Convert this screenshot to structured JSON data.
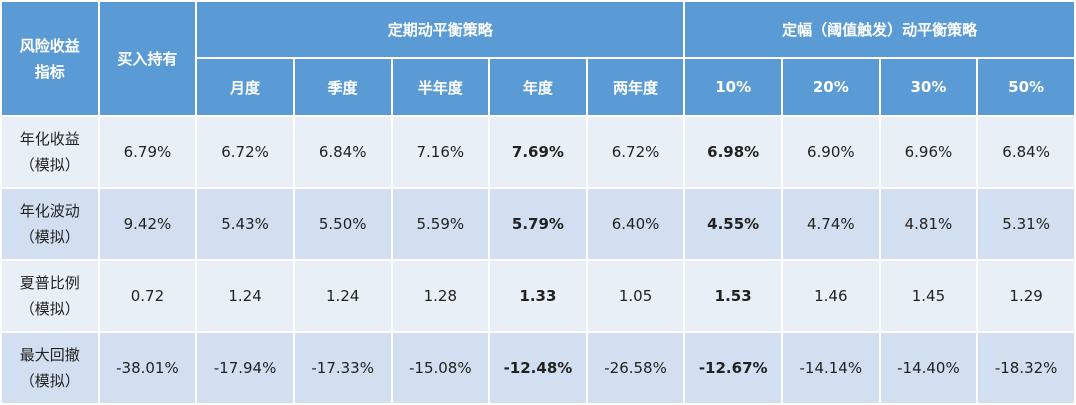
{
  "table": {
    "corner": [
      "风险收益",
      "指标"
    ],
    "buy_hold": "买入持有",
    "groups": [
      {
        "title": "定期动平衡策略",
        "columns": [
          {
            "name": "月度",
            "emphasis": false
          },
          {
            "name": "季度",
            "emphasis": false
          },
          {
            "name": "半年度",
            "emphasis": false
          },
          {
            "name": "年度",
            "emphasis": true
          },
          {
            "name": "两年度",
            "emphasis": false
          }
        ]
      },
      {
        "title": "定幅（阈值触发）动平衡策略",
        "columns": [
          {
            "name": "10%",
            "emphasis": true
          },
          {
            "name": "20%",
            "emphasis": false
          },
          {
            "name": "30%",
            "emphasis": false
          },
          {
            "name": "50%",
            "emphasis": false
          }
        ]
      }
    ],
    "rows": [
      {
        "label": [
          "年化收益",
          "（模拟）"
        ],
        "cells": [
          "6.79%",
          "6.72%",
          "6.84%",
          "7.16%",
          "7.69%",
          "6.72%",
          "6.98%",
          "6.90%",
          "6.96%",
          "6.84%"
        ]
      },
      {
        "label": [
          "年化波动",
          "（模拟）"
        ],
        "cells": [
          "9.42%",
          "5.43%",
          "5.50%",
          "5.59%",
          "5.79%",
          "6.40%",
          "4.55%",
          "4.74%",
          "4.81%",
          "5.31%"
        ]
      },
      {
        "label": [
          "夏普比例",
          "（模拟）"
        ],
        "cells": [
          "0.72",
          "1.24",
          "1.24",
          "1.28",
          "1.33",
          "1.05",
          "1.53",
          "1.46",
          "1.45",
          "1.29"
        ]
      },
      {
        "label": [
          "最大回撤",
          "（模拟）"
        ],
        "cells": [
          "-38.01%",
          "-17.94%",
          "-17.33%",
          "-15.08%",
          "-12.48%",
          "-26.58%",
          "-12.67%",
          "-14.14%",
          "-14.40%",
          "-18.32%"
        ]
      }
    ]
  }
}
